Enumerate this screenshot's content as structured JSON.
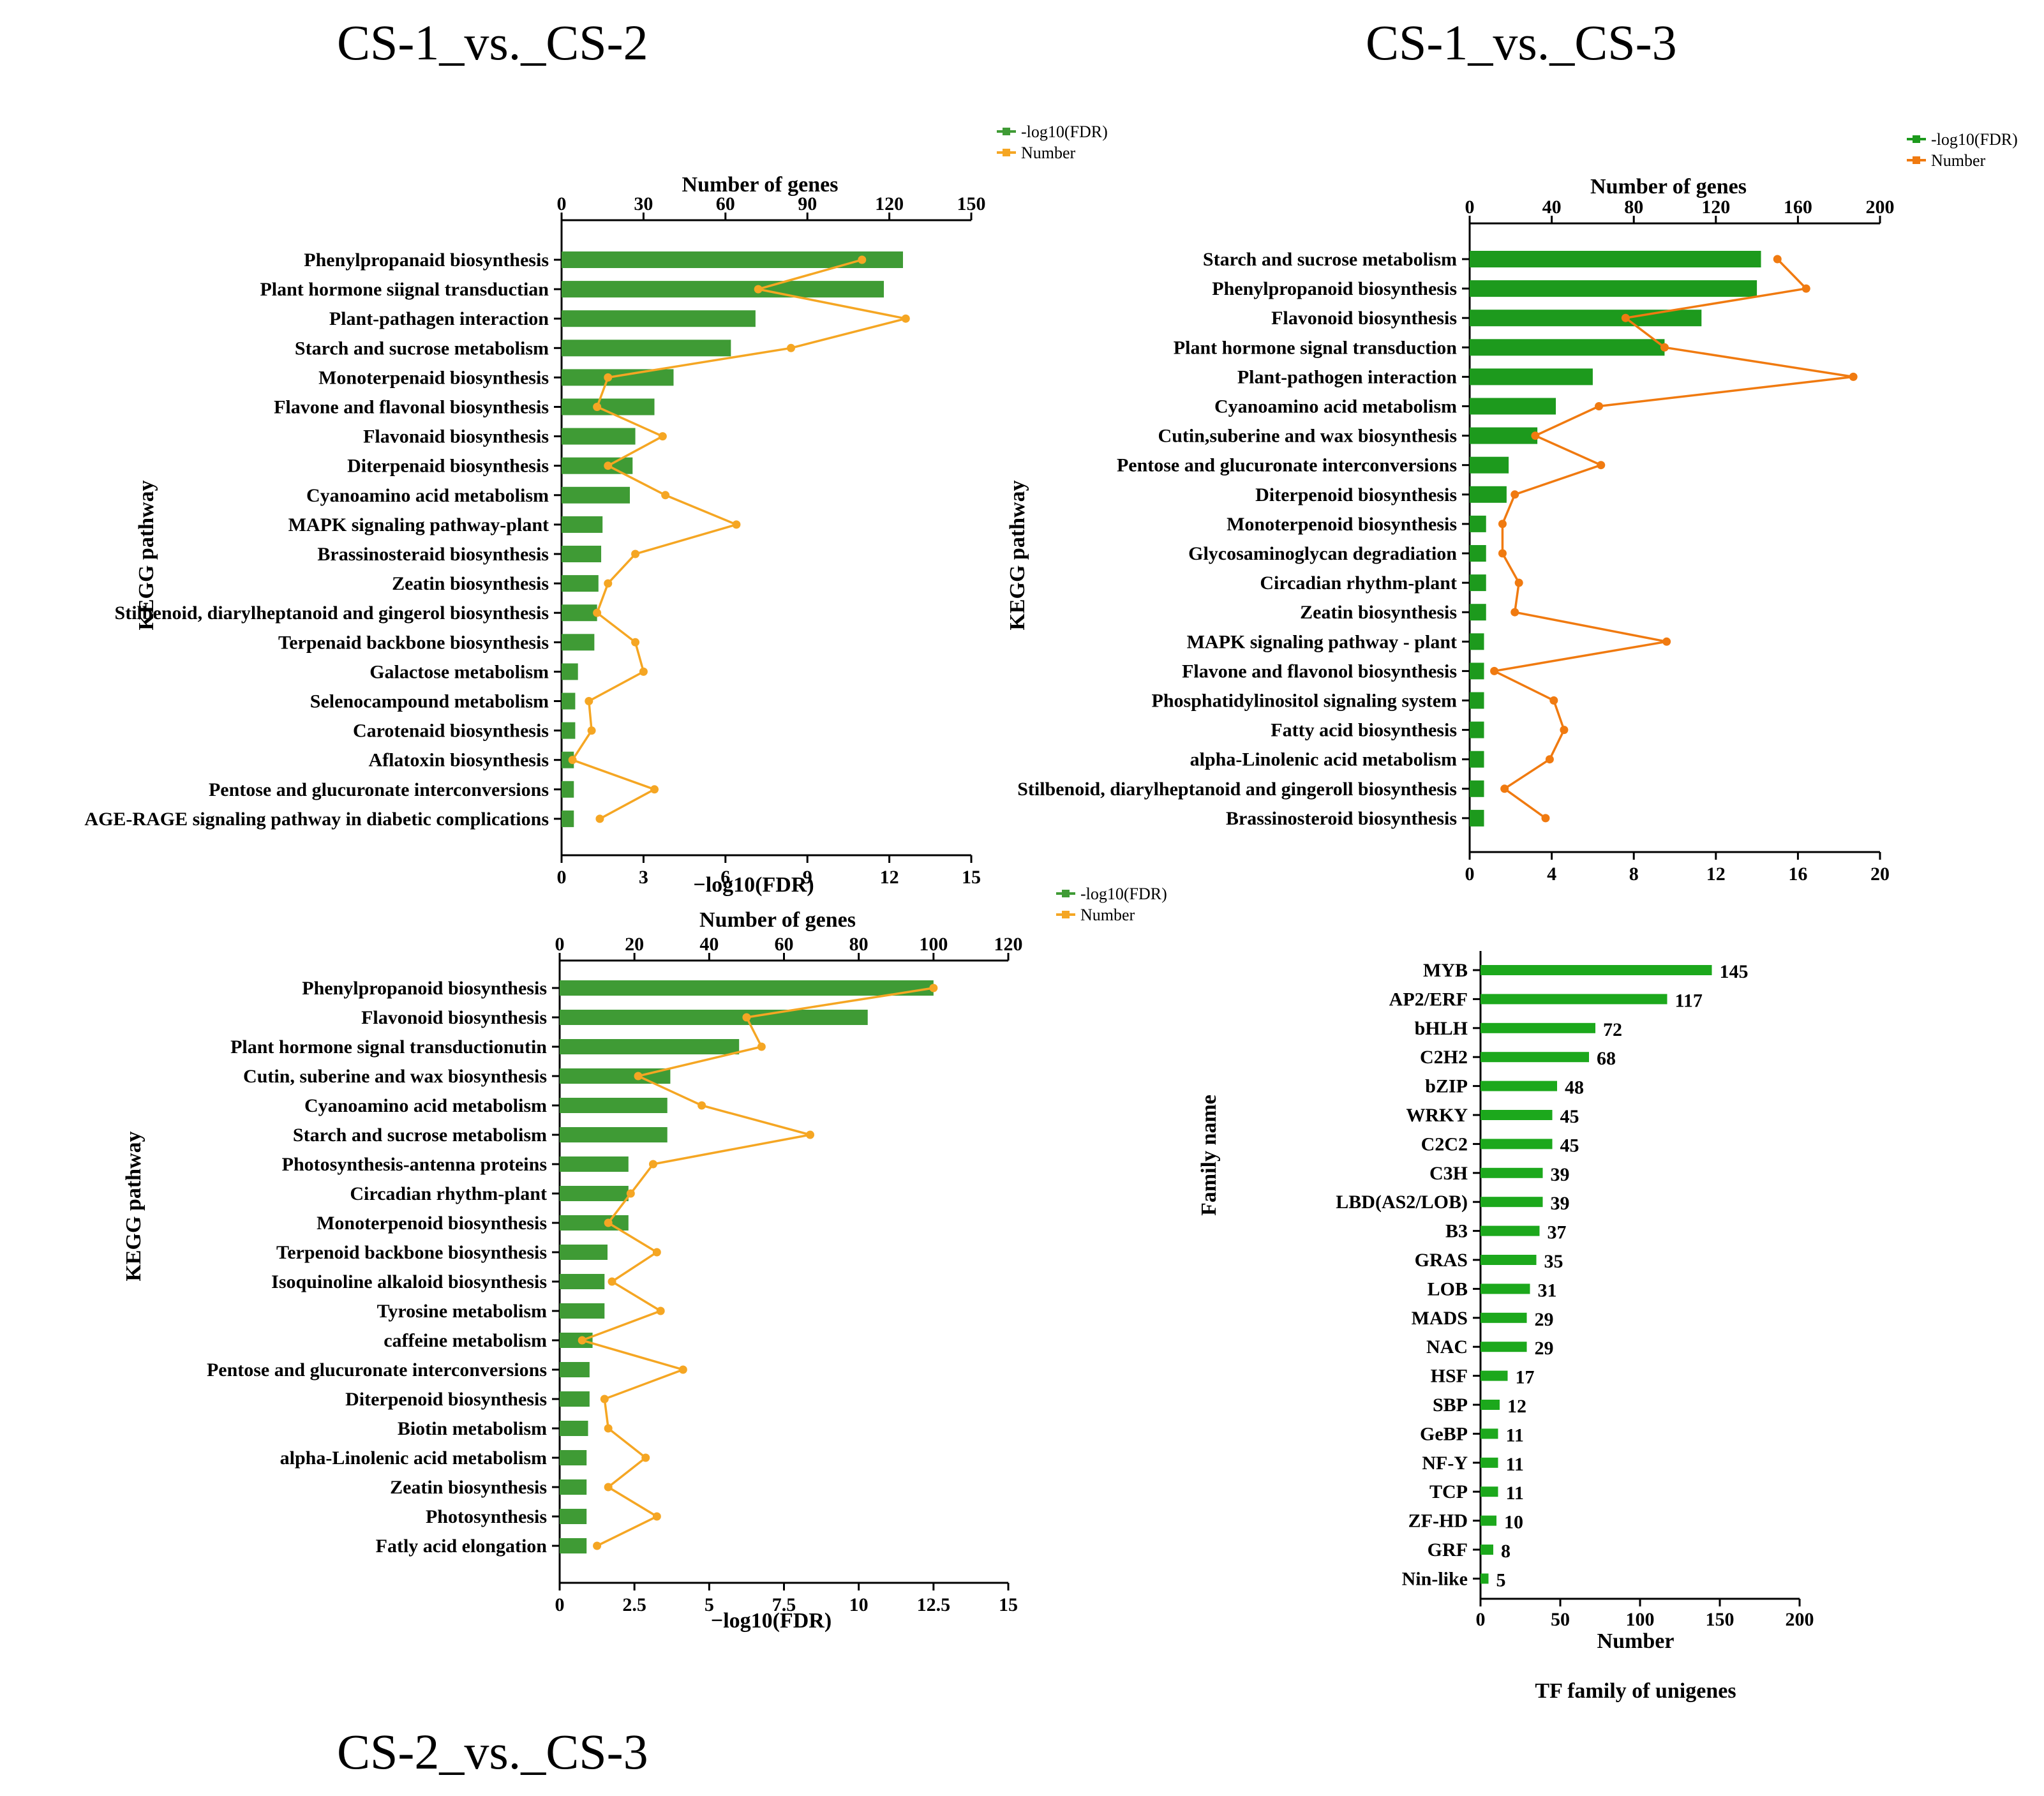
{
  "panel_titles": [
    "CS-1_vs._CS-2",
    "CS-1_vs._CS-3",
    "CS-2_vs._CS-3"
  ],
  "chart_data": [
    {
      "type": "bar",
      "panel": "CS-1_vs._CS-2",
      "orientation": "horizontal",
      "xlabel": "−log10(FDR)",
      "x2label": "Number of genes",
      "ylabel": "KEGG pathway",
      "xlim": [
        0,
        15
      ],
      "x2lim": [
        0,
        150
      ],
      "xticks": [
        "0",
        "3",
        "6",
        "9",
        "12",
        "15"
      ],
      "x2ticks": [
        "0",
        "30",
        "60",
        "90",
        "120",
        "150"
      ],
      "legend": [
        "-log10(FDR)",
        "Number"
      ],
      "legend_position": "top-right",
      "bar_color": "#3f9b35",
      "line_color": "#f5a623",
      "categories": [
        "Phenylpropanaid biosynthesis",
        "Plant hormone siignal transductian",
        "Plant-pathagen interaction",
        "Starch and sucrose metabolism",
        "Monoterpenaid biosynthesis",
        "Flavone and flavonal biosynthesis",
        "Flavonaid biosynthesis",
        "Diterpenaid biosynthesis",
        "Cyanoamino acid metabolism",
        "MAPK signaling pathway-plant",
        "Brassinosteraid biosynthesis",
        "Zeatin biosynthesis",
        "Stilbenoid, diarylheptanoid and gingerol biosynthesis",
        "Terpenaid backbone biosynthesis",
        "Galactose metabolism",
        "Selenocampound metabolism",
        "Carotenaid biosynthesis",
        "Aflatoxin biosynthesis",
        "Pentose and glucuronate interconversions",
        "AGE-RAGE signaling pathway in diabetic complications"
      ],
      "series": [
        {
          "name": "-log10(FDR)",
          "axis": "bottom",
          "values": [
            12.5,
            11.8,
            7.1,
            6.2,
            4.1,
            3.4,
            2.7,
            2.6,
            2.5,
            1.5,
            1.45,
            1.35,
            1.3,
            1.2,
            0.6,
            0.5,
            0.5,
            0.45,
            0.45,
            0.45
          ]
        },
        {
          "name": "Number",
          "axis": "top",
          "values": [
            110,
            72,
            126,
            84,
            17,
            13,
            37,
            17,
            38,
            64,
            27,
            17,
            13,
            27,
            30,
            10,
            11,
            4,
            34,
            14
          ]
        }
      ]
    },
    {
      "type": "bar",
      "panel": "CS-1_vs._CS-3",
      "orientation": "horizontal",
      "xlabel": "",
      "x2label": "Number of genes",
      "ylabel": "KEGG pathway",
      "xlim": [
        0,
        20
      ],
      "x2lim": [
        0,
        200
      ],
      "xticks": [
        "0",
        "4",
        "8",
        "12",
        "16",
        "20"
      ],
      "x2ticks": [
        "0",
        "40",
        "80",
        "120",
        "160",
        "200"
      ],
      "legend": [
        "-log10(FDR)",
        "Number"
      ],
      "legend_position": "top-right",
      "bar_color": "#1d9a1d",
      "line_color": "#f07a10",
      "categories": [
        "Starch and sucrose metabolism",
        "Phenylpropanoid biosynthesis",
        "Flavonoid biosynthesis",
        "Plant hormone signal transduction",
        "Plant-pathogen interaction",
        "Cyanoamino acid metabolism",
        "Cutin,suberine and wax biosynthesis",
        "Pentose and glucuronate interconversions",
        "Diterpenoid biosynthesis",
        "Monoterpenoid biosynthesis",
        "Glycosaminoglycan degradiation",
        "Circadian rhythm-plant",
        "Zeatin biosynthesis",
        "MAPK signaling pathway - plant",
        "Flavone and flavonol biosynthesis",
        "Phosphatidylinositol signaling system",
        "Fatty acid biosynthesis",
        "alpha-Linolenic acid metabolism",
        "Stilbenoid, diarylheptanoid and gingeroll biosynthesis",
        "Brassinosteroid biosynthesis"
      ],
      "series": [
        {
          "name": "-log10(FDR)",
          "axis": "bottom",
          "values": [
            14.2,
            14.0,
            11.3,
            9.5,
            6.0,
            4.2,
            3.3,
            1.9,
            1.8,
            0.8,
            0.8,
            0.8,
            0.8,
            0.7,
            0.7,
            0.7,
            0.7,
            0.7,
            0.7,
            0.7
          ]
        },
        {
          "name": "Number",
          "axis": "top",
          "values": [
            150,
            164,
            76,
            95,
            187,
            63,
            32,
            64,
            22,
            16,
            16,
            24,
            22,
            96,
            12,
            41,
            46,
            39,
            17,
            37
          ]
        }
      ]
    },
    {
      "type": "bar",
      "panel": "CS-2_vs._CS-3",
      "orientation": "horizontal",
      "xlabel": "−log10(FDR)",
      "x2label": "Number of genes",
      "ylabel": "KEGG pathway",
      "xlim": [
        0,
        15
      ],
      "x2lim": [
        0,
        120
      ],
      "xticks": [
        "0",
        "2.5",
        "5",
        "7.5",
        "10",
        "12.5",
        "15"
      ],
      "x2ticks": [
        "0",
        "20",
        "40",
        "60",
        "80",
        "100",
        "120"
      ],
      "legend": [
        "-log10(FDR)",
        "Number"
      ],
      "legend_position": "top-right",
      "bar_color": "#3f9b35",
      "line_color": "#f5a623",
      "categories": [
        "Phenylpropanoid biosynthesis",
        "Flavonoid biosynthesis",
        "Plant hormone signal transductionutin",
        "Cutin, suberine and wax biosynthesis",
        "Cyanoamino acid metabolism",
        "Starch and sucrose metabolism",
        "Photosynthesis-antenna proteins",
        "Circadian rhythm-plant",
        "Monoterpenoid biosynthesis",
        "Terpenoid backbone biosynthesis",
        "Isoquinoline alkaloid biosynthesis",
        "Tyrosine metabolism",
        "caffeine metabolism",
        "Pentose and glucuronate interconversions",
        "Diterpenoid biosynthesis",
        "Biotin metabolism",
        "alpha-Linolenic acid metabolism",
        "Zeatin biosynthesis",
        "Photosynthesis",
        "Fatly acid elongation"
      ],
      "series": [
        {
          "name": "-log10(FDR)",
          "axis": "bottom",
          "values": [
            12.5,
            10.3,
            6.0,
            3.7,
            3.6,
            3.6,
            2.3,
            2.3,
            2.3,
            1.6,
            1.5,
            1.5,
            1.1,
            1.0,
            1.0,
            0.95,
            0.9,
            0.9,
            0.9,
            0.9
          ]
        },
        {
          "name": "Number",
          "axis": "top",
          "values": [
            100,
            50,
            54,
            21,
            38,
            67,
            25,
            19,
            13,
            26,
            14,
            27,
            6,
            33,
            12,
            13,
            23,
            13,
            26,
            10
          ]
        }
      ]
    },
    {
      "type": "bar",
      "panel": "TF family of unigenes",
      "orientation": "horizontal",
      "title": "TF family of unigenes",
      "xlabel": "Number",
      "ylabel": "Family name",
      "xlim": [
        0,
        200
      ],
      "xticks": [
        "0",
        "50",
        "100",
        "150",
        "200"
      ],
      "bar_color": "#1ca81c",
      "categories": [
        "MYB",
        "AP2/ERF",
        "bHLH",
        "C2H2",
        "bZIP",
        "WRKY",
        "C2C2",
        "C3H",
        "LBD(AS2/LOB)",
        "B3",
        "GRAS",
        "LOB",
        "MADS",
        "NAC",
        "HSF",
        "SBP",
        "GeBP",
        "NF-Y",
        "TCP",
        "ZF-HD",
        "GRF",
        "Nin-like"
      ],
      "values": [
        145,
        117,
        72,
        68,
        48,
        45,
        45,
        39,
        39,
        37,
        35,
        31,
        29,
        29,
        17,
        12,
        11,
        11,
        11,
        10,
        8,
        5
      ]
    }
  ]
}
